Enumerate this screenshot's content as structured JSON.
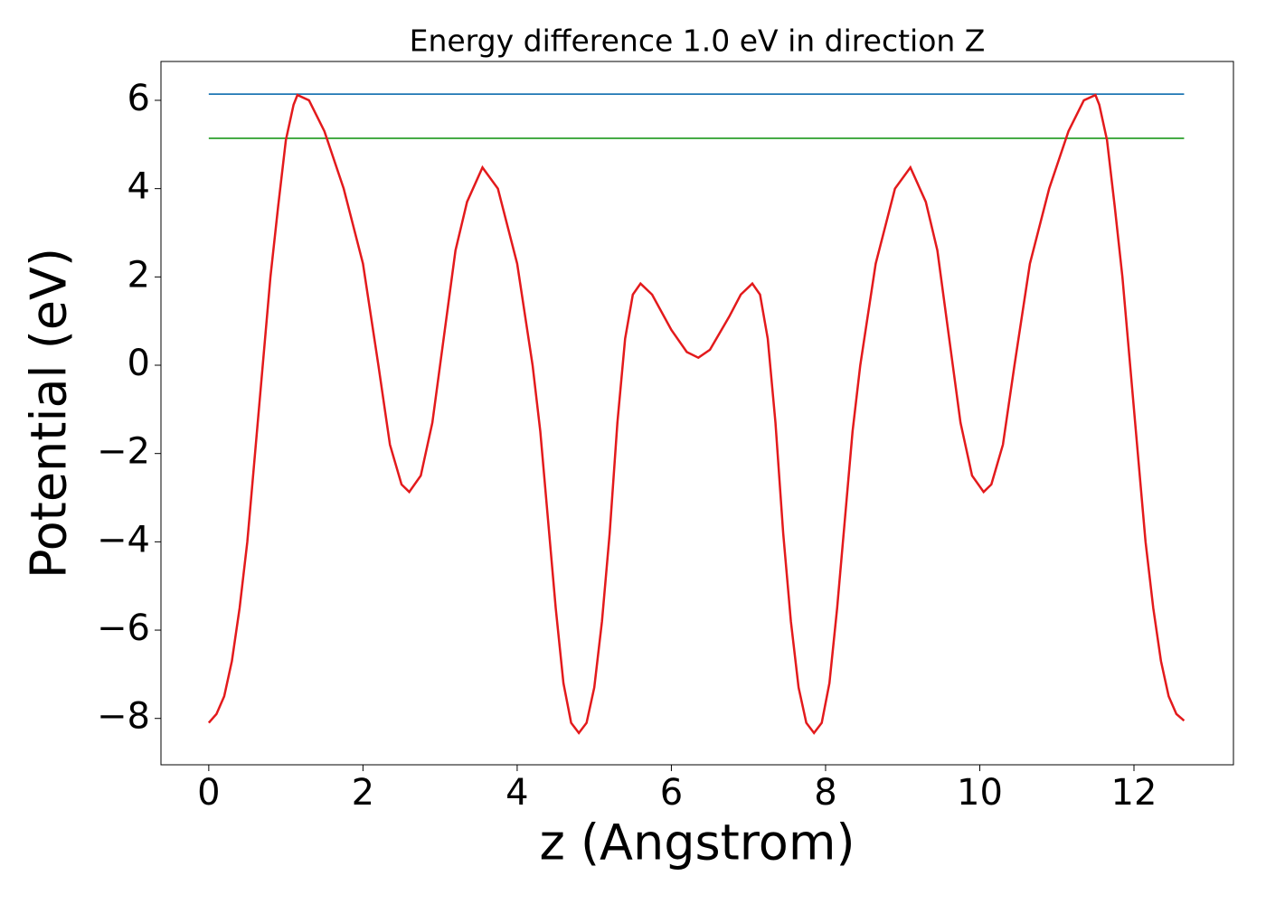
{
  "chart_data": {
    "type": "line",
    "title": "Energy difference 1.0 eV in direction Z",
    "x_label": "z (Angstrom)",
    "y_label": "Potential (eV)",
    "xlim": [
      -0.62,
      13.29
    ],
    "ylim": [
      -9.05,
      6.88
    ],
    "xticks": [
      0,
      2,
      4,
      6,
      8,
      10,
      12
    ],
    "yticks": [
      {
        "value": -8,
        "label": "−8"
      },
      {
        "value": -6,
        "label": "−6"
      },
      {
        "value": -4,
        "label": "−4"
      },
      {
        "value": -2,
        "label": "−2"
      },
      0,
      2,
      4,
      6
    ],
    "grid": false,
    "series": [
      {
        "color": "#1f77b4",
        "x": [
          0,
          12.65
        ],
        "values": [
          6.14,
          6.14
        ]
      },
      {
        "color": "#2ca02c",
        "x": [
          0,
          12.65
        ],
        "values": [
          5.14,
          5.14
        ]
      },
      {
        "color": "#e31a1c",
        "x": [
          0,
          0.1,
          0.2,
          0.3,
          0.4,
          0.5,
          0.6,
          0.7,
          0.8,
          0.9,
          1.0,
          1.1,
          1.15,
          1.3,
          1.5,
          1.75,
          2.0,
          2.2,
          2.35,
          2.5,
          2.6,
          2.75,
          2.9,
          3.0,
          3.2,
          3.35,
          3.55,
          3.75,
          4.0,
          4.2,
          4.3,
          4.4,
          4.5,
          4.6,
          4.7,
          4.8,
          4.9,
          5.0,
          5.1,
          5.2,
          5.3,
          5.4,
          5.5,
          5.6,
          5.75,
          6.0,
          6.2,
          6.35,
          6.5,
          6.75,
          6.9,
          7.05,
          7.15,
          7.25,
          7.35,
          7.45,
          7.55,
          7.65,
          7.75,
          7.85,
          7.95,
          8.05,
          8.15,
          8.25,
          8.35,
          8.45,
          8.65,
          8.9,
          9.1,
          9.3,
          9.45,
          9.65,
          9.75,
          9.9,
          10.05,
          10.15,
          10.3,
          10.45,
          10.65,
          10.9,
          11.15,
          11.35,
          11.5,
          11.55,
          11.65,
          11.75,
          11.85,
          11.95,
          12.05,
          12.15,
          12.25,
          12.35,
          12.45,
          12.55,
          12.65
        ],
        "values": [
          -8.1,
          -7.9,
          -7.5,
          -6.7,
          -5.5,
          -4.0,
          -2.0,
          0.0,
          2.0,
          3.6,
          5.1,
          5.9,
          6.12,
          6.0,
          5.3,
          4.0,
          2.3,
          0.0,
          -1.8,
          -2.7,
          -2.87,
          -2.5,
          -1.3,
          0.0,
          2.6,
          3.7,
          4.48,
          4.0,
          2.3,
          0.0,
          -1.5,
          -3.5,
          -5.5,
          -7.2,
          -8.1,
          -8.33,
          -8.1,
          -7.3,
          -5.8,
          -3.8,
          -1.3,
          0.6,
          1.6,
          1.85,
          1.6,
          0.8,
          0.3,
          0.17,
          0.35,
          1.1,
          1.6,
          1.85,
          1.6,
          0.6,
          -1.3,
          -3.8,
          -5.8,
          -7.3,
          -8.1,
          -8.33,
          -8.1,
          -7.2,
          -5.5,
          -3.5,
          -1.5,
          0.0,
          2.3,
          4.0,
          4.48,
          3.7,
          2.6,
          0.0,
          -1.3,
          -2.5,
          -2.87,
          -2.7,
          -1.8,
          0.0,
          2.3,
          4.0,
          5.3,
          6.0,
          6.12,
          5.9,
          5.1,
          3.6,
          2.0,
          0.0,
          -2.0,
          -4.0,
          -5.5,
          -6.7,
          -7.5,
          -7.9,
          -8.05
        ]
      }
    ]
  }
}
